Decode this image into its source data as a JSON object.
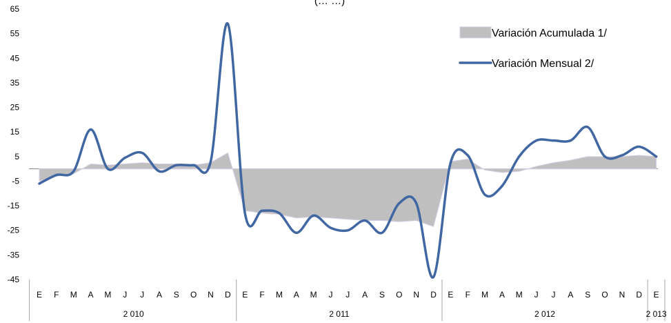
{
  "chart_data": {
    "type": "area",
    "title_fragment": "(…                             …)",
    "yticks": [
      65,
      55,
      45,
      35,
      25,
      15,
      5,
      -5,
      -15,
      -25,
      -35,
      -45
    ],
    "ylim": [
      -45,
      65
    ],
    "month_labels": [
      "E",
      "F",
      "M",
      "A",
      "M",
      "J",
      "J",
      "A",
      "S",
      "O",
      "N",
      "D",
      "E",
      "F",
      "M",
      "A",
      "M",
      "J",
      "J",
      "A",
      "S",
      "O",
      "N",
      "D",
      "E",
      "F",
      "M",
      "A",
      "M",
      "J",
      "J",
      "A",
      "S",
      "O",
      "N",
      "D",
      "E"
    ],
    "year_groups": [
      {
        "label": "2 010",
        "start": 0,
        "end": 11
      },
      {
        "label": "2 011",
        "start": 12,
        "end": 23
      },
      {
        "label": "2 012",
        "start": 24,
        "end": 35
      },
      {
        "label": "2 013",
        "start": 36,
        "end": 36
      }
    ],
    "series": [
      {
        "name": "Variación Acumulada 1/",
        "type": "area",
        "color": "#bfbfbf",
        "values": [
          -5,
          -3,
          -2,
          2,
          1.5,
          2,
          2.5,
          2,
          2,
          1.5,
          2.5,
          6.5,
          -17,
          -18,
          -18.5,
          -20,
          -19.5,
          -20,
          -20.5,
          -21,
          -21,
          -21.5,
          -21,
          -23.5,
          3,
          4,
          -0.5,
          -1.5,
          -1,
          1,
          2.5,
          3.5,
          5,
          5,
          5,
          5.5,
          5
        ]
      },
      {
        "name": "Variación Mensual 2/",
        "type": "line",
        "color": "#4167a3",
        "values": [
          -6,
          -2.5,
          -1,
          16,
          0,
          4.5,
          6.5,
          -1,
          1.5,
          1.5,
          3,
          59,
          -18,
          -17,
          -18,
          -26,
          -19,
          -24,
          -25,
          -21,
          -26,
          -14,
          -14,
          -44,
          2.5,
          5.5,
          -10.5,
          -7,
          5,
          11.5,
          11.5,
          11.5,
          17,
          5,
          5.5,
          9,
          5
        ]
      }
    ]
  }
}
